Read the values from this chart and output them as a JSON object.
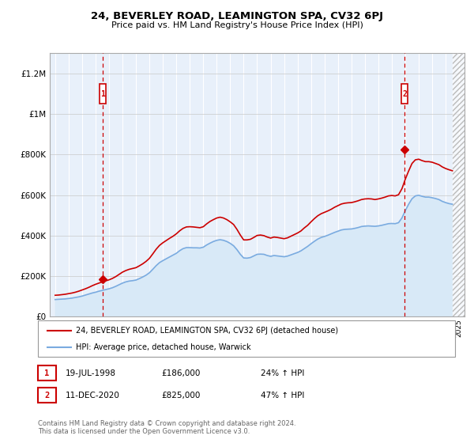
{
  "title": "24, BEVERLEY ROAD, LEAMINGTON SPA, CV32 6PJ",
  "subtitle": "Price paid vs. HM Land Registry's House Price Index (HPI)",
  "legend_line1": "24, BEVERLEY ROAD, LEAMINGTON SPA, CV32 6PJ (detached house)",
  "legend_line2": "HPI: Average price, detached house, Warwick",
  "footer": "Contains HM Land Registry data © Crown copyright and database right 2024.\nThis data is licensed under the Open Government Licence v3.0.",
  "transaction1_date": "19-JUL-1998",
  "transaction1_price": "£186,000",
  "transaction1_hpi": "24% ↑ HPI",
  "transaction1_label": "1",
  "transaction2_date": "11-DEC-2020",
  "transaction2_price": "£825,000",
  "transaction2_hpi": "47% ↑ HPI",
  "transaction2_label": "2",
  "red_color": "#CC0000",
  "blue_color": "#7AABE0",
  "blue_fill_color": "#D8E9F7",
  "background_color": "#E8F0FA",
  "ylim": [
    0,
    1300000
  ],
  "yticks": [
    0,
    200000,
    400000,
    600000,
    800000,
    1000000,
    1200000
  ],
  "ytick_labels": [
    "£0",
    "£200K",
    "£400K",
    "£600K",
    "£800K",
    "£1M",
    "£1.2M"
  ],
  "hpi_years": [
    1995.0,
    1995.25,
    1995.5,
    1995.75,
    1996.0,
    1996.25,
    1996.5,
    1996.75,
    1997.0,
    1997.25,
    1997.5,
    1997.75,
    1998.0,
    1998.25,
    1998.5,
    1998.75,
    1999.0,
    1999.25,
    1999.5,
    1999.75,
    2000.0,
    2000.25,
    2000.5,
    2000.75,
    2001.0,
    2001.25,
    2001.5,
    2001.75,
    2002.0,
    2002.25,
    2002.5,
    2002.75,
    2003.0,
    2003.25,
    2003.5,
    2003.75,
    2004.0,
    2004.25,
    2004.5,
    2004.75,
    2005.0,
    2005.25,
    2005.5,
    2005.75,
    2006.0,
    2006.25,
    2006.5,
    2006.75,
    2007.0,
    2007.25,
    2007.5,
    2007.75,
    2008.0,
    2008.25,
    2008.5,
    2008.75,
    2009.0,
    2009.25,
    2009.5,
    2009.75,
    2010.0,
    2010.25,
    2010.5,
    2010.75,
    2011.0,
    2011.25,
    2011.5,
    2011.75,
    2012.0,
    2012.25,
    2012.5,
    2012.75,
    2013.0,
    2013.25,
    2013.5,
    2013.75,
    2014.0,
    2014.25,
    2014.5,
    2014.75,
    2015.0,
    2015.25,
    2015.5,
    2015.75,
    2016.0,
    2016.25,
    2016.5,
    2016.75,
    2017.0,
    2017.25,
    2017.5,
    2017.75,
    2018.0,
    2018.25,
    2018.5,
    2018.75,
    2019.0,
    2019.25,
    2019.5,
    2019.75,
    2020.0,
    2020.25,
    2020.5,
    2020.75,
    2021.0,
    2021.25,
    2021.5,
    2021.75,
    2022.0,
    2022.25,
    2022.5,
    2022.75,
    2023.0,
    2023.25,
    2023.5,
    2023.75,
    2024.0,
    2024.25,
    2024.5
  ],
  "hpi_values": [
    85000,
    86000,
    87000,
    88000,
    90000,
    92000,
    95000,
    98000,
    102000,
    107000,
    112000,
    117000,
    121000,
    126000,
    130000,
    134000,
    138000,
    143000,
    150000,
    158000,
    166000,
    172000,
    176000,
    178000,
    181000,
    188000,
    196000,
    205000,
    217000,
    234000,
    252000,
    267000,
    277000,
    286000,
    295000,
    304000,
    313000,
    326000,
    336000,
    341000,
    341000,
    340000,
    340000,
    339000,
    343000,
    354000,
    363000,
    371000,
    377000,
    380000,
    377000,
    371000,
    362000,
    350000,
    331000,
    308000,
    290000,
    289000,
    292000,
    300000,
    308000,
    309000,
    308000,
    302000,
    298000,
    302000,
    300000,
    298000,
    296000,
    299000,
    305000,
    311000,
    317000,
    325000,
    336000,
    347000,
    360000,
    372000,
    383000,
    391000,
    396000,
    402000,
    409000,
    416000,
    422000,
    428000,
    431000,
    432000,
    433000,
    436000,
    440000,
    445000,
    447000,
    448000,
    447000,
    446000,
    448000,
    451000,
    455000,
    459000,
    460000,
    459000,
    464000,
    487000,
    523000,
    555000,
    582000,
    596000,
    599000,
    594000,
    590000,
    590000,
    587000,
    583000,
    578000,
    569000,
    563000,
    558000,
    555000
  ],
  "red_years": [
    1995.0,
    1995.25,
    1995.5,
    1995.75,
    1996.0,
    1996.25,
    1996.5,
    1996.75,
    1997.0,
    1997.25,
    1997.5,
    1997.75,
    1998.0,
    1998.25,
    1998.5,
    1998.75,
    1999.0,
    1999.25,
    1999.5,
    1999.75,
    2000.0,
    2000.25,
    2000.5,
    2000.75,
    2001.0,
    2001.25,
    2001.5,
    2001.75,
    2002.0,
    2002.25,
    2002.5,
    2002.75,
    2003.0,
    2003.25,
    2003.5,
    2003.75,
    2004.0,
    2004.25,
    2004.5,
    2004.75,
    2005.0,
    2005.25,
    2005.5,
    2005.75,
    2006.0,
    2006.25,
    2006.5,
    2006.75,
    2007.0,
    2007.25,
    2007.5,
    2007.75,
    2008.0,
    2008.25,
    2008.5,
    2008.75,
    2009.0,
    2009.25,
    2009.5,
    2009.75,
    2010.0,
    2010.25,
    2010.5,
    2010.75,
    2011.0,
    2011.25,
    2011.5,
    2011.75,
    2012.0,
    2012.25,
    2012.5,
    2012.75,
    2013.0,
    2013.25,
    2013.5,
    2013.75,
    2014.0,
    2014.25,
    2014.5,
    2014.75,
    2015.0,
    2015.25,
    2015.5,
    2015.75,
    2016.0,
    2016.25,
    2016.5,
    2016.75,
    2017.0,
    2017.25,
    2017.5,
    2017.75,
    2018.0,
    2018.25,
    2018.5,
    2018.75,
    2019.0,
    2019.25,
    2019.5,
    2019.75,
    2020.0,
    2020.25,
    2020.5,
    2020.75,
    2021.0,
    2021.25,
    2021.5,
    2021.75,
    2022.0,
    2022.25,
    2022.5,
    2022.75,
    2023.0,
    2023.25,
    2023.5,
    2023.75,
    2024.0,
    2024.25,
    2024.5
  ],
  "red_values": [
    106000,
    107000,
    109000,
    111000,
    114000,
    117000,
    121000,
    126000,
    132000,
    138000,
    145000,
    153000,
    160000,
    166000,
    172000,
    177000,
    182000,
    189000,
    198000,
    209000,
    220000,
    228000,
    234000,
    238000,
    242000,
    251000,
    261000,
    273000,
    288000,
    310000,
    333000,
    352000,
    365000,
    376000,
    387000,
    397000,
    409000,
    424000,
    436000,
    443000,
    444000,
    443000,
    441000,
    439000,
    444000,
    458000,
    470000,
    479000,
    487000,
    491000,
    487000,
    479000,
    468000,
    455000,
    431000,
    403000,
    379000,
    379000,
    382000,
    391000,
    401000,
    403000,
    400000,
    393000,
    388000,
    393000,
    391000,
    388000,
    385000,
    389000,
    397000,
    405000,
    413000,
    423000,
    438000,
    451000,
    468000,
    484000,
    498000,
    508000,
    515000,
    522000,
    530000,
    540000,
    548000,
    556000,
    560000,
    562000,
    563000,
    567000,
    572000,
    578000,
    581000,
    582000,
    581000,
    578000,
    581000,
    585000,
    590000,
    596000,
    598000,
    596000,
    602000,
    631000,
    678000,
    719000,
    756000,
    774000,
    777000,
    770000,
    765000,
    765000,
    762000,
    756000,
    750000,
    739000,
    731000,
    725000,
    720000
  ],
  "transaction1_x": 1998.54,
  "transaction1_y": 186000,
  "transaction2_x": 2020.94,
  "transaction2_y": 825000,
  "hatch_start": 2024.5,
  "xmin": 1994.6,
  "xmax": 2025.4,
  "xlim_hatch_end": 2025.4
}
